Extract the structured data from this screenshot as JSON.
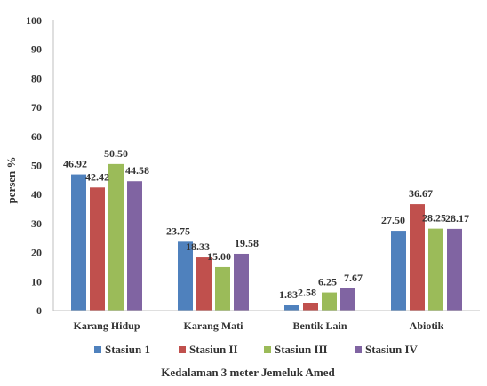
{
  "chart_data": {
    "type": "bar",
    "title": "",
    "xlabel": "Kedalaman 3 meter Jemeluk Amed",
    "ylabel": "persen %",
    "ylim": [
      0,
      100
    ],
    "yticks": [
      0,
      10,
      20,
      30,
      40,
      50,
      60,
      70,
      80,
      90,
      100
    ],
    "grid": false,
    "legend_position": "bottom",
    "categories": [
      "Karang Hidup",
      "Karang Mati",
      "Bentik Lain",
      "Abiotik"
    ],
    "series": [
      {
        "name": "Stasiun 1",
        "color": "#4F81BD",
        "values": [
          46.92,
          23.75,
          1.83,
          27.5
        ],
        "labels": [
          "46.92",
          "23.75",
          "1.83",
          "27.50"
        ]
      },
      {
        "name": "Stasiun II",
        "color": "#C0504D",
        "values": [
          42.42,
          18.33,
          2.58,
          36.67
        ],
        "labels": [
          "42.42",
          "18.33",
          "2.58",
          "36.67"
        ]
      },
      {
        "name": "Stasiun III",
        "color": "#9BBB59",
        "values": [
          50.5,
          15.0,
          6.25,
          28.25
        ],
        "labels": [
          "50.50",
          "15.00",
          "6.25",
          "28.25"
        ]
      },
      {
        "name": "Stasiun IV",
        "color": "#8064A2",
        "values": [
          44.58,
          19.58,
          7.67,
          28.17
        ],
        "labels": [
          "44.58",
          "19.58",
          "7.67",
          "28.17"
        ]
      }
    ]
  }
}
